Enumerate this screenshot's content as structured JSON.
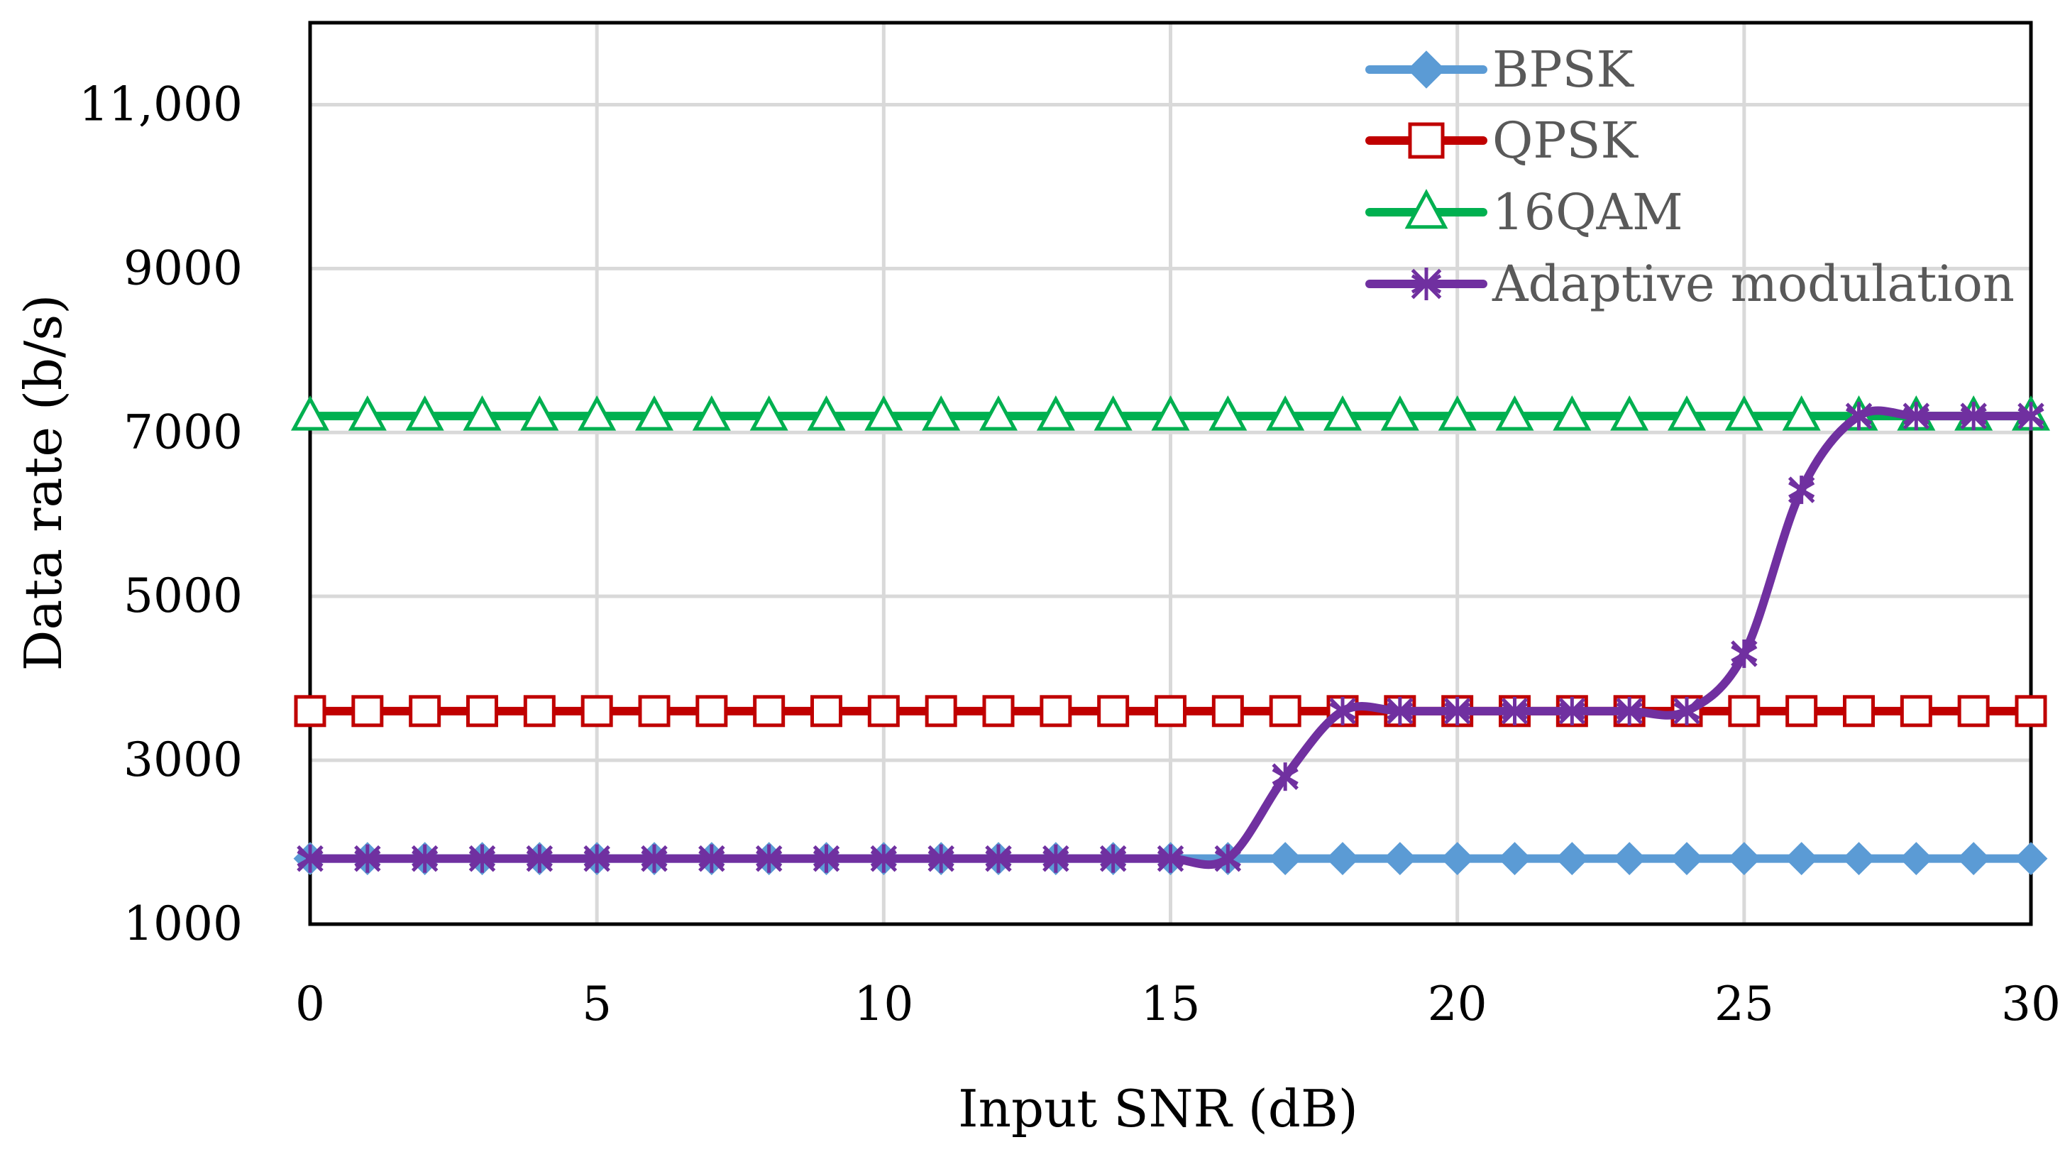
{
  "chart_data": {
    "type": "line",
    "title": "",
    "xlabel": "Input SNR (dB)",
    "ylabel": "Data rate (b/s)",
    "xlim": [
      0,
      30
    ],
    "ylim": [
      1000,
      12000
    ],
    "grid": true,
    "legend_position": "top-right",
    "x_ticks": [
      0,
      5,
      10,
      15,
      20,
      25,
      30
    ],
    "x_tick_labels": [
      "0",
      "5",
      "10",
      "15",
      "20",
      "25",
      "30"
    ],
    "y_ticks": [
      1000,
      3000,
      5000,
      7000,
      9000,
      11000
    ],
    "y_tick_labels": [
      "1000",
      "3000",
      "5000",
      "7000",
      "9000",
      "11,000"
    ],
    "x": [
      0,
      1,
      2,
      3,
      4,
      5,
      6,
      7,
      8,
      9,
      10,
      11,
      12,
      13,
      14,
      15,
      16,
      17,
      18,
      19,
      20,
      21,
      22,
      23,
      24,
      25,
      26,
      27,
      28,
      29,
      30
    ],
    "series": [
      {
        "name": "BPSK",
        "color": "#5B9BD5",
        "marker": "diamond",
        "smooth": false,
        "values": [
          1800,
          1800,
          1800,
          1800,
          1800,
          1800,
          1800,
          1800,
          1800,
          1800,
          1800,
          1800,
          1800,
          1800,
          1800,
          1800,
          1800,
          1800,
          1800,
          1800,
          1800,
          1800,
          1800,
          1800,
          1800,
          1800,
          1800,
          1800,
          1800,
          1800,
          1800
        ]
      },
      {
        "name": "QPSK",
        "color": "#C00000",
        "marker": "square-open",
        "smooth": false,
        "values": [
          3600,
          3600,
          3600,
          3600,
          3600,
          3600,
          3600,
          3600,
          3600,
          3600,
          3600,
          3600,
          3600,
          3600,
          3600,
          3600,
          3600,
          3600,
          3600,
          3600,
          3600,
          3600,
          3600,
          3600,
          3600,
          3600,
          3600,
          3600,
          3600,
          3600,
          3600
        ]
      },
      {
        "name": "16QAM",
        "color": "#00B050",
        "marker": "triangle-open",
        "smooth": false,
        "values": [
          7200,
          7200,
          7200,
          7200,
          7200,
          7200,
          7200,
          7200,
          7200,
          7200,
          7200,
          7200,
          7200,
          7200,
          7200,
          7200,
          7200,
          7200,
          7200,
          7200,
          7200,
          7200,
          7200,
          7200,
          7200,
          7200,
          7200,
          7200,
          7200,
          7200,
          7200
        ]
      },
      {
        "name": "Adaptive modulation",
        "color": "#7030A0",
        "marker": "star",
        "smooth": true,
        "values": [
          1800,
          1800,
          1800,
          1800,
          1800,
          1800,
          1800,
          1800,
          1800,
          1800,
          1800,
          1800,
          1800,
          1800,
          1800,
          1800,
          1800,
          2800,
          3600,
          3600,
          3600,
          3600,
          3600,
          3600,
          3600,
          4300,
          6300,
          7200,
          7200,
          7200,
          7200
        ]
      }
    ]
  }
}
